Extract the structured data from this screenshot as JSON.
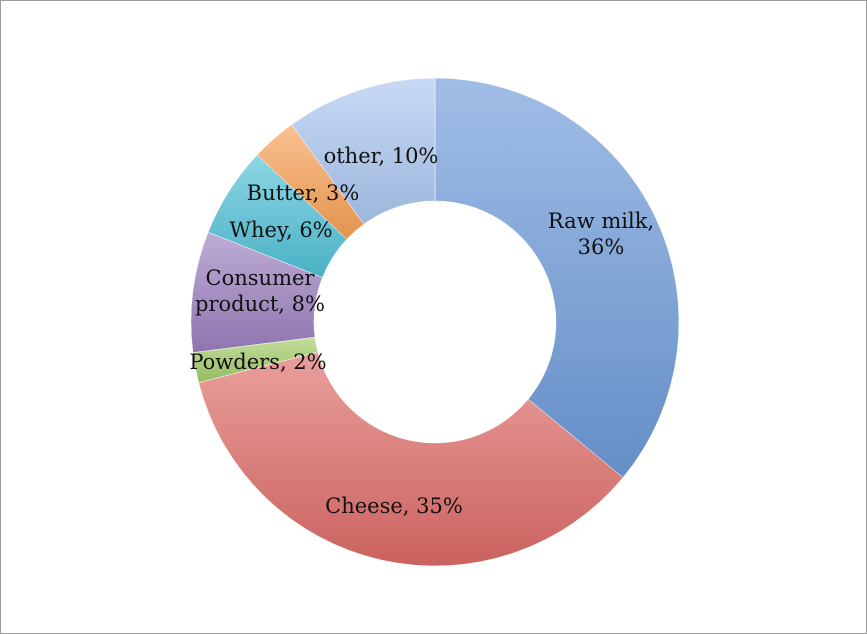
{
  "chart_data": {
    "type": "pie",
    "variant": "doughnut",
    "title": "",
    "categories": [
      "Raw milk",
      "Cheese",
      "Powders",
      "Consumer product",
      "Whey",
      "Butter",
      "other"
    ],
    "values": [
      36,
      35,
      2,
      8,
      6,
      3,
      10
    ],
    "unit": "%",
    "data_labels": [
      [
        "Raw milk,",
        "36%"
      ],
      [
        "Cheese, 35%"
      ],
      [
        "Powders, 2%"
      ],
      [
        "Consumer",
        "product, 8%"
      ],
      [
        "Whey, 6%"
      ],
      [
        "Butter, 3%"
      ],
      [
        "other, 10%"
      ]
    ],
    "colors": [
      "#6d9ad8",
      "#dd6b67",
      "#a3cc6a",
      "#9b7fbe",
      "#4fc0d6",
      "#f7a055",
      "#aac6ef"
    ],
    "legend": "none"
  }
}
